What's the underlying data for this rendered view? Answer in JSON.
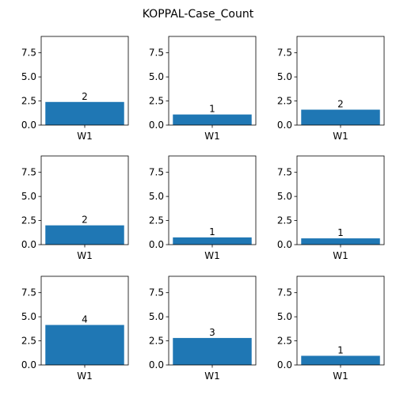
{
  "chart_data": {
    "title": "KOPPAL-Case_Count",
    "type": "bar",
    "layout": "3x3 grid of subplots, shared y-axis range",
    "bar_color": "#1f77b4",
    "ylim": [
      0,
      9.2
    ],
    "yticks": [
      "0.0",
      "2.5",
      "5.0",
      "7.5"
    ],
    "ytick_values": [
      0,
      2.5,
      5.0,
      7.5
    ],
    "grid": false,
    "subplots": [
      {
        "categories": [
          "W1"
        ],
        "values": [
          2.4
        ],
        "data_label": "2"
      },
      {
        "categories": [
          "W1"
        ],
        "values": [
          1.1
        ],
        "data_label": "1"
      },
      {
        "categories": [
          "W1"
        ],
        "values": [
          1.6
        ],
        "data_label": "2"
      },
      {
        "categories": [
          "W1"
        ],
        "values": [
          2.0
        ],
        "data_label": "2"
      },
      {
        "categories": [
          "W1"
        ],
        "values": [
          0.75
        ],
        "data_label": "1"
      },
      {
        "categories": [
          "W1"
        ],
        "values": [
          0.65
        ],
        "data_label": "1"
      },
      {
        "categories": [
          "W1"
        ],
        "values": [
          4.15
        ],
        "data_label": "4"
      },
      {
        "categories": [
          "W1"
        ],
        "values": [
          2.8
        ],
        "data_label": "3"
      },
      {
        "categories": [
          "W1"
        ],
        "values": [
          0.95
        ],
        "data_label": "1"
      }
    ]
  }
}
